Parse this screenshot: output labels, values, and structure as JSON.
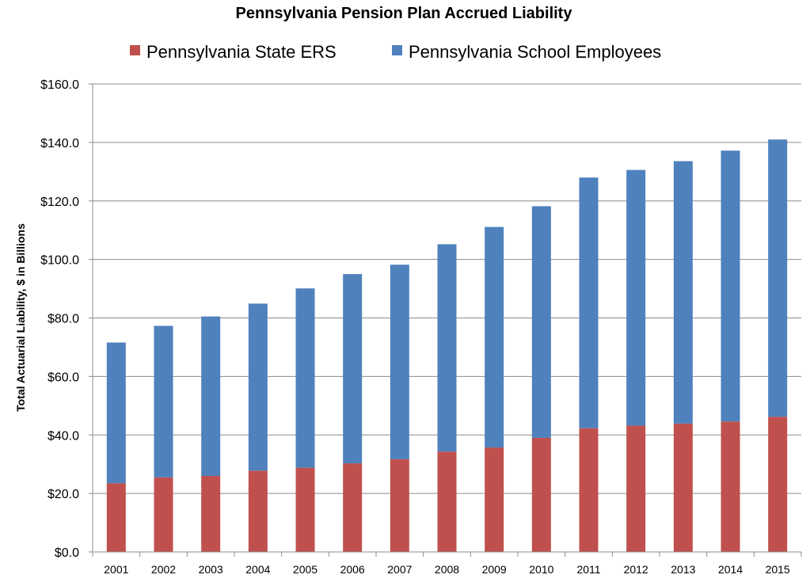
{
  "chart_data": {
    "type": "bar",
    "stacked": true,
    "title": "Pennsylvania Pension Plan Accrued Liability",
    "ylabel": "Total Actuarial Liability, $ in Billions",
    "xlabel": "",
    "ylim": [
      0,
      160
    ],
    "ytick_step": 20,
    "ytick_labels": [
      "$0.0",
      "$20.0",
      "$40.0",
      "$60.0",
      "$80.0",
      "$100.0",
      "$120.0",
      "$140.0",
      "$160.0"
    ],
    "grid": true,
    "legend_position": "top",
    "categories": [
      "2001",
      "2002",
      "2003",
      "2004",
      "2005",
      "2006",
      "2007",
      "2008",
      "2009",
      "2010",
      "2011",
      "2012",
      "2013",
      "2014",
      "2015"
    ],
    "series": [
      {
        "name": "Pennsylvania State ERS",
        "color": "#c0504d",
        "values": [
          23.5,
          25.5,
          26.0,
          27.8,
          28.8,
          30.3,
          31.7,
          34.3,
          35.7,
          39.0,
          42.3,
          43.2,
          43.9,
          44.6,
          46.2
        ]
      },
      {
        "name": "Pennsylvania School Employees",
        "color": "#4f81bd",
        "values": [
          48.1,
          51.8,
          54.5,
          57.1,
          61.3,
          64.7,
          66.5,
          70.9,
          75.4,
          79.2,
          85.7,
          87.4,
          89.7,
          92.6,
          94.8
        ]
      }
    ]
  }
}
